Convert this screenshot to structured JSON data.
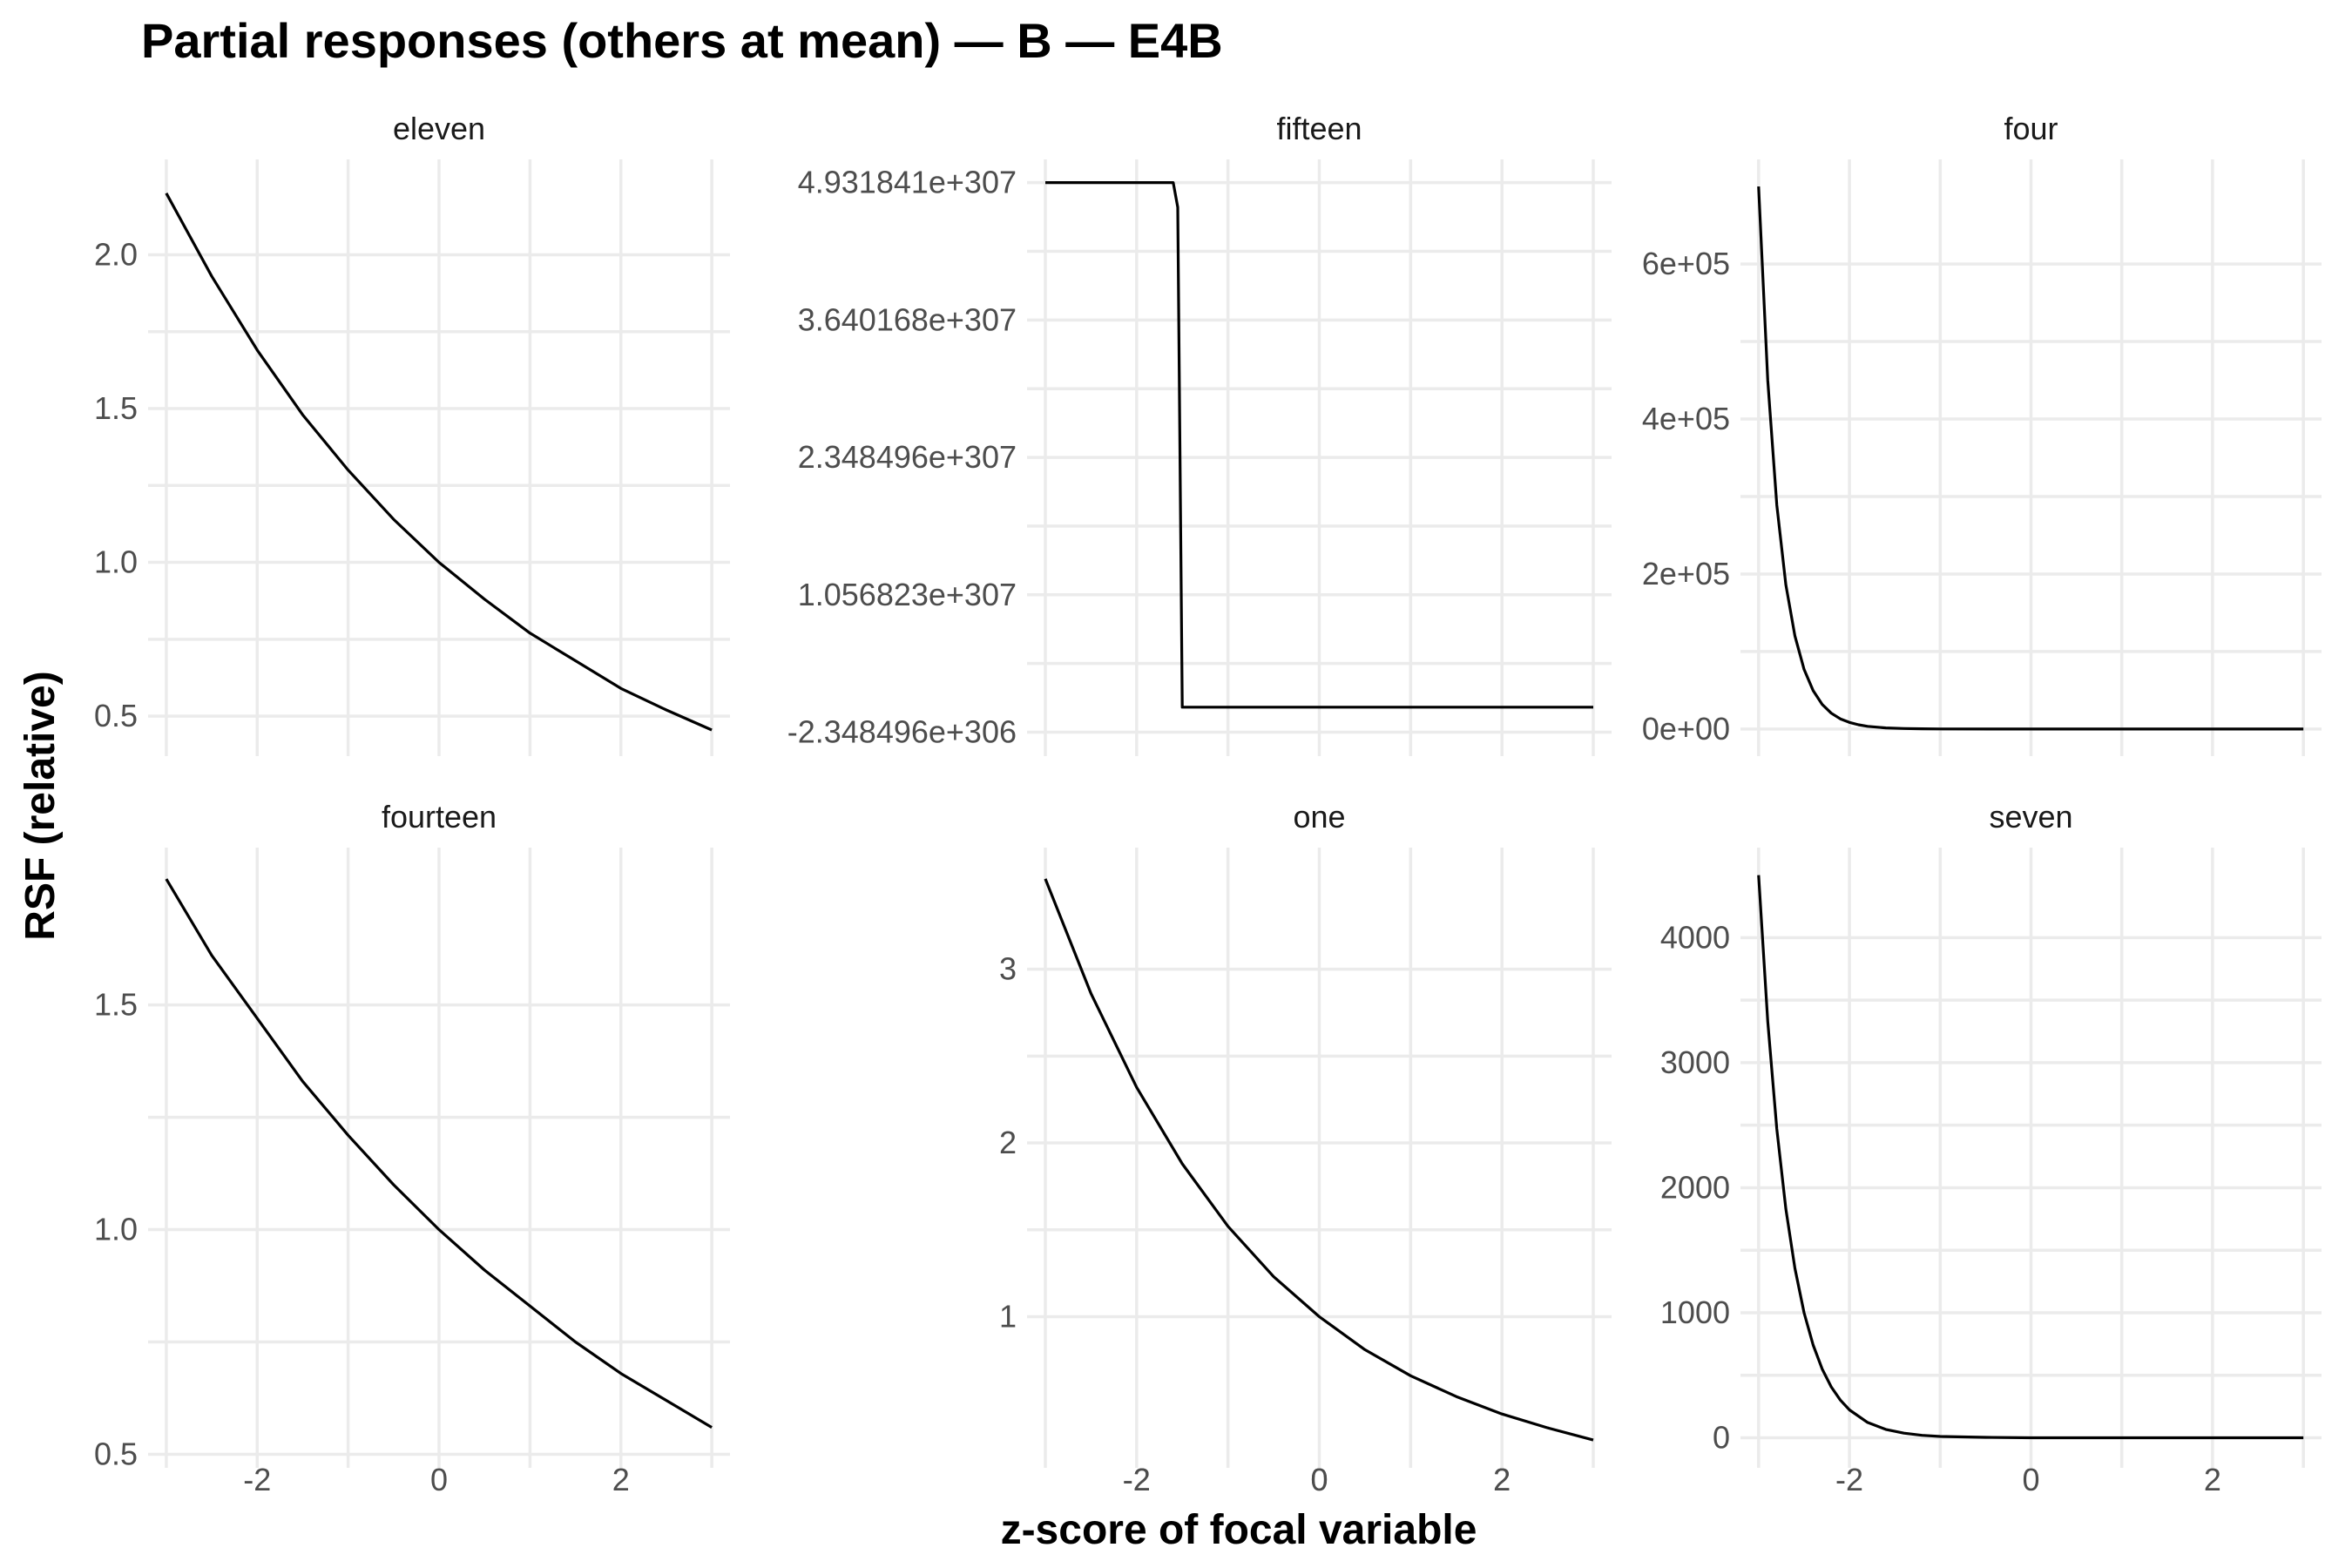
{
  "colors": {
    "line": "#000000",
    "grid": "#ebebeb",
    "tick_text": "#4d4d4d",
    "background": "#ffffff"
  },
  "chart_data": {
    "type": "line",
    "title": "Partial responses (others at mean) — B — E4B",
    "xlabel": "z-score of focal variable",
    "ylabel": "RSF (relative)",
    "xlim": [
      -3.2,
      3.2
    ],
    "x_ticks": [
      "-2",
      "0",
      "2"
    ],
    "grid": true,
    "legend": "none",
    "panels": [
      {
        "name": "eleven",
        "ylim": [
          0.37,
          2.31
        ],
        "y_ticks": [
          {
            "value": 0.5,
            "label": "0.5"
          },
          {
            "value": 1.0,
            "label": "1.0"
          },
          {
            "value": 1.5,
            "label": "1.5"
          },
          {
            "value": 2.0,
            "label": "2.0"
          }
        ],
        "x": [
          -3,
          -2.5,
          -2,
          -1.5,
          -1,
          -0.5,
          0,
          0.5,
          1,
          1.5,
          2,
          2.5,
          3
        ],
        "y": [
          2.2,
          1.93,
          1.69,
          1.48,
          1.3,
          1.14,
          1.0,
          0.88,
          0.77,
          0.68,
          0.59,
          0.52,
          0.455
        ]
      },
      {
        "name": "fifteen",
        "ylim": [
          -4.6e+306,
          5.15e+307
        ],
        "y_ticks": [
          {
            "value": -2.348496e+306,
            "label": "-2.348496e+306"
          },
          {
            "value": 1.056823e+307,
            "label": "1.056823e+307"
          },
          {
            "value": 2.348496e+307,
            "label": "2.348496e+307"
          },
          {
            "value": 3.640168e+307,
            "label": "3.640168e+307"
          },
          {
            "value": 4.931841e+307,
            "label": "4.931841e+307"
          }
        ],
        "x": [
          -3,
          -1.6,
          -1.55,
          -1.5,
          -1.45,
          3
        ],
        "y": [
          4.931841e+307,
          4.931841e+307,
          4.7e+307,
          0,
          0,
          0
        ]
      },
      {
        "name": "four",
        "ylim": [
          -35000,
          735000
        ],
        "y_ticks": [
          {
            "value": 0,
            "label": "0e+00"
          },
          {
            "value": 200000,
            "label": "2e+05"
          },
          {
            "value": 400000,
            "label": "4e+05"
          },
          {
            "value": 600000,
            "label": "6e+05"
          }
        ],
        "x": [
          -3,
          -2.9,
          -2.8,
          -2.7,
          -2.6,
          -2.5,
          -2.4,
          -2.3,
          -2.2,
          -2.1,
          -2.0,
          -1.9,
          -1.8,
          -1.6,
          -1.4,
          -1.2,
          -1.0,
          0,
          1,
          2,
          3
        ],
        "y": [
          700000,
          450000,
          289000,
          186000,
          120000,
          77000,
          49500,
          31800,
          20400,
          13100,
          8450,
          5430,
          3490,
          1440,
          600,
          250,
          100,
          0,
          0,
          0,
          0
        ]
      },
      {
        "name": "fourteen",
        "ylim": [
          0.47,
          1.85
        ],
        "y_ticks": [
          {
            "value": 0.5,
            "label": "0.5"
          },
          {
            "value": 1.0,
            "label": "1.0"
          },
          {
            "value": 1.5,
            "label": "1.5"
          }
        ],
        "x": [
          -3,
          -2.5,
          -2,
          -1.5,
          -1,
          -0.5,
          0,
          0.5,
          1,
          1.5,
          2,
          2.5,
          3
        ],
        "y": [
          1.78,
          1.61,
          1.47,
          1.33,
          1.21,
          1.1,
          1.0,
          0.91,
          0.83,
          0.75,
          0.68,
          0.62,
          0.56
        ]
      },
      {
        "name": "one",
        "ylim": [
          0.13,
          3.7
        ],
        "y_ticks": [
          {
            "value": 1,
            "label": "1"
          },
          {
            "value": 2,
            "label": "2"
          },
          {
            "value": 3,
            "label": "3"
          }
        ],
        "x": [
          -3,
          -2.5,
          -2,
          -1.5,
          -1,
          -0.5,
          0,
          0.5,
          1,
          1.5,
          2,
          2.5,
          3
        ],
        "y": [
          3.52,
          2.86,
          2.32,
          1.88,
          1.52,
          1.23,
          1.0,
          0.81,
          0.66,
          0.54,
          0.44,
          0.36,
          0.29
        ]
      },
      {
        "name": "seven",
        "ylim": [
          -240,
          4720
        ],
        "y_ticks": [
          {
            "value": 0,
            "label": "0"
          },
          {
            "value": 1000,
            "label": "1000"
          },
          {
            "value": 2000,
            "label": "2000"
          },
          {
            "value": 3000,
            "label": "3000"
          },
          {
            "value": 4000,
            "label": "4000"
          }
        ],
        "x": [
          -3,
          -2.9,
          -2.8,
          -2.7,
          -2.6,
          -2.5,
          -2.4,
          -2.3,
          -2.2,
          -2.1,
          -2.0,
          -1.8,
          -1.6,
          -1.4,
          -1.2,
          -1.0,
          -0.5,
          0,
          1,
          2,
          3
        ],
        "y": [
          4500,
          3330,
          2470,
          1830,
          1355,
          1000,
          742,
          550,
          407,
          302,
          223,
          123,
          67,
          37,
          20,
          11,
          4,
          0,
          0,
          0,
          0
        ]
      }
    ]
  }
}
